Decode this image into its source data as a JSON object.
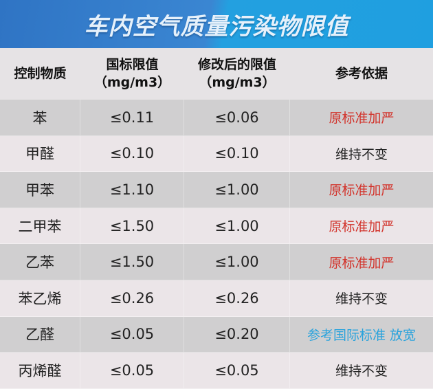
{
  "title": "车内空气质量污染物限值",
  "headers": [
    {
      "line1": "控制物质",
      "line2": ""
    },
    {
      "line1": "国标限值",
      "line2": "（mg/m3）"
    },
    {
      "line1": "修改后的限值",
      "line2": "（mg/m3）"
    },
    {
      "line1": "参考依据",
      "line2": ""
    }
  ],
  "colors": {
    "stricter": "#d2332b",
    "unchanged": "#222222",
    "relaxed": "#2aa3dc"
  },
  "rows": [
    {
      "substance": "苯",
      "national": "≤0.11",
      "revised": "≤0.06",
      "basis": "原标准加严",
      "status": "stricter"
    },
    {
      "substance": "甲醛",
      "national": "≤0.10",
      "revised": "≤0.10",
      "basis": "维持不变",
      "status": "unchanged"
    },
    {
      "substance": "甲苯",
      "national": "≤1.10",
      "revised": "≤1.00",
      "basis": "原标准加严",
      "status": "stricter"
    },
    {
      "substance": "二甲苯",
      "national": "≤1.50",
      "revised": "≤1.00",
      "basis": "原标准加严",
      "status": "stricter"
    },
    {
      "substance": "乙苯",
      "national": "≤1.50",
      "revised": "≤1.00",
      "basis": "原标准加严",
      "status": "stricter"
    },
    {
      "substance": "苯乙烯",
      "national": "≤0.26",
      "revised": "≤0.26",
      "basis": "维持不变",
      "status": "unchanged"
    },
    {
      "substance": "乙醛",
      "national": "≤0.05",
      "revised": "≤0.20",
      "basis": "参考国际标准 放宽",
      "status": "relaxed"
    },
    {
      "substance": "丙烯醛",
      "national": "≤0.05",
      "revised": "≤0.05",
      "basis": "维持不变",
      "status": "unchanged"
    }
  ]
}
